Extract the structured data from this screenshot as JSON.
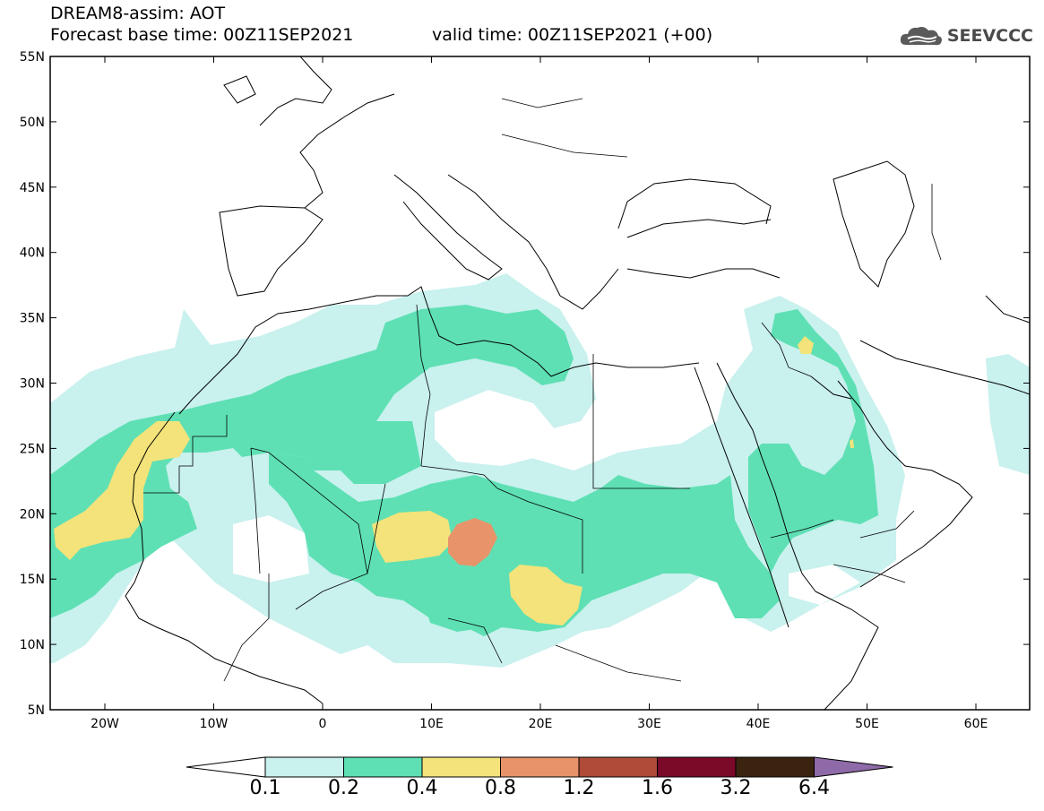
{
  "header": {
    "title": "DREAM8-assim: AOT",
    "base_time": "Forecast base time: 00Z11SEP2021",
    "valid_time": "valid time: 00Z11SEP2021 (+00)"
  },
  "logo": {
    "text": "SEEVCCC",
    "icon": "cloud-icon"
  },
  "axes": {
    "lat_labels": [
      "55N",
      "50N",
      "45N",
      "40N",
      "35N",
      "30N",
      "25N",
      "20N",
      "15N",
      "10N",
      "5N"
    ],
    "lon_labels": [
      "20W",
      "10W",
      "0",
      "10E",
      "20E",
      "30E",
      "40E",
      "50E",
      "60E"
    ]
  },
  "colorbar": {
    "labels": [
      "0.1",
      "0.2",
      "0.4",
      "0.8",
      "1.2",
      "1.6",
      "3.2",
      "6.4"
    ],
    "colors": [
      "#ffffff",
      "#c9f1ee",
      "#5ee0b4",
      "#f3e37a",
      "#e8936a",
      "#b04a39",
      "#7a0a27",
      "#3a2410",
      "#8e6aa8"
    ]
  }
}
